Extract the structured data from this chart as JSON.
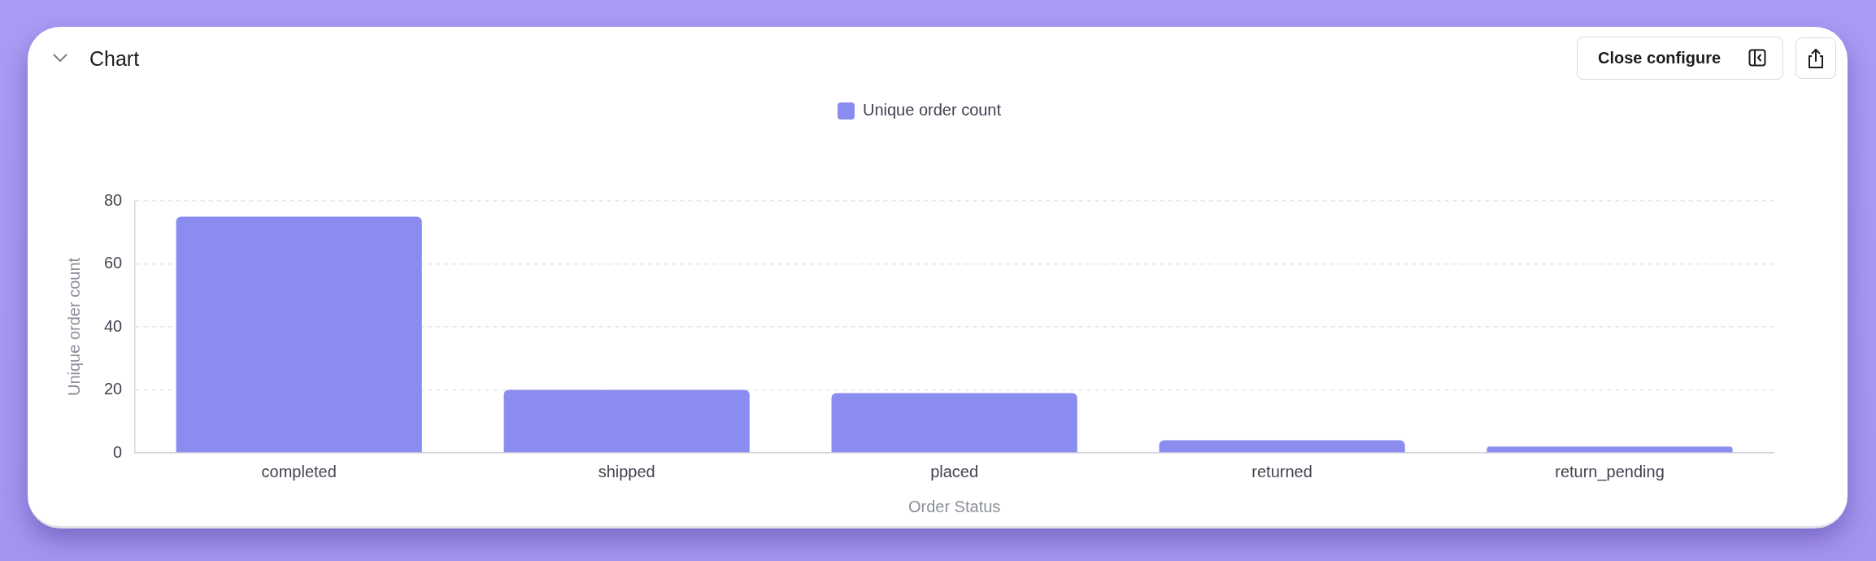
{
  "chart_data": {
    "type": "bar",
    "title": "Chart",
    "xlabel": "Order Status",
    "ylabel": "Unique order count",
    "categories": [
      "completed",
      "shipped",
      "placed",
      "returned",
      "return_pending"
    ],
    "series": [
      {
        "name": "Unique order count",
        "color": "#8b8cf0",
        "values": [
          75,
          20,
          19,
          4,
          2
        ]
      }
    ],
    "ylim": [
      0,
      80
    ],
    "yticks": [
      0,
      20,
      40,
      60,
      80
    ],
    "grid": "y",
    "legend": "top",
    "annotations": [
      "Close configure"
    ]
  }
}
